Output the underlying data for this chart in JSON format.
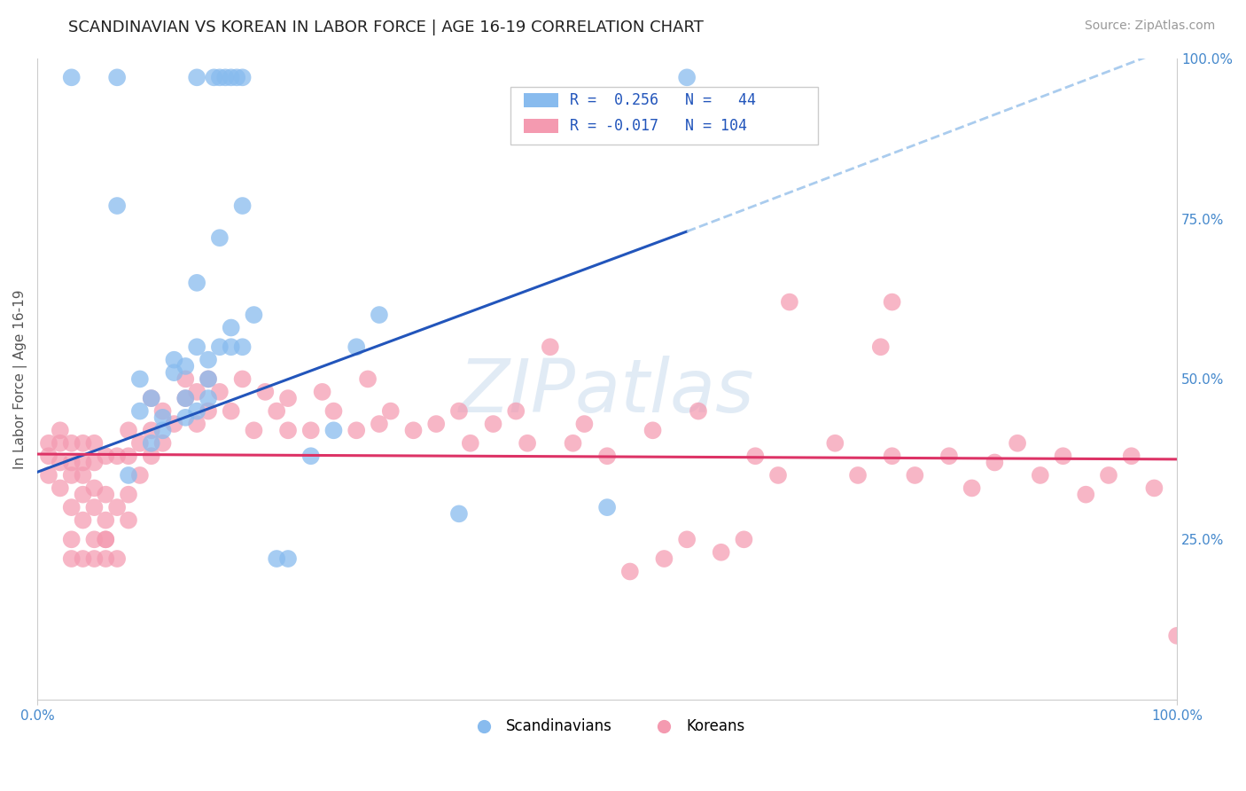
{
  "title": "SCANDINAVIAN VS KOREAN IN LABOR FORCE | AGE 16-19 CORRELATION CHART",
  "source_text": "Source: ZipAtlas.com",
  "ylabel": "In Labor Force | Age 16-19",
  "xlim": [
    0.0,
    1.0
  ],
  "ylim": [
    0.0,
    1.0
  ],
  "ytick_positions": [
    0.25,
    0.5,
    0.75,
    1.0
  ],
  "ytick_labels": [
    "25.0%",
    "50.0%",
    "75.0%",
    "100.0%"
  ],
  "grid_color": "#cccccc",
  "background_color": "#ffffff",
  "watermark": "ZIPatlas",
  "scandinavian_color": "#88bbee",
  "korean_color": "#f49ab0",
  "trend_scand_color": "#2255bb",
  "trend_korean_color": "#dd3366",
  "trend_dashed_color": "#aaccee",
  "scand_x": [
    0.03,
    0.07,
    0.14,
    0.155,
    0.16,
    0.165,
    0.17,
    0.175,
    0.18,
    0.07,
    0.08,
    0.09,
    0.09,
    0.1,
    0.1,
    0.11,
    0.11,
    0.12,
    0.12,
    0.13,
    0.13,
    0.13,
    0.14,
    0.14,
    0.15,
    0.15,
    0.15,
    0.16,
    0.17,
    0.17,
    0.18,
    0.19,
    0.21,
    0.22,
    0.24,
    0.26,
    0.28,
    0.3,
    0.37,
    0.5,
    0.57,
    0.14,
    0.16,
    0.18
  ],
  "scand_y": [
    0.97,
    0.97,
    0.97,
    0.97,
    0.97,
    0.97,
    0.97,
    0.97,
    0.97,
    0.77,
    0.35,
    0.45,
    0.5,
    0.4,
    0.47,
    0.42,
    0.44,
    0.51,
    0.53,
    0.44,
    0.47,
    0.52,
    0.45,
    0.55,
    0.47,
    0.5,
    0.53,
    0.55,
    0.55,
    0.58,
    0.55,
    0.6,
    0.22,
    0.22,
    0.38,
    0.42,
    0.55,
    0.6,
    0.29,
    0.3,
    0.97,
    0.65,
    0.72,
    0.77
  ],
  "korean_x": [
    0.01,
    0.01,
    0.01,
    0.02,
    0.02,
    0.02,
    0.02,
    0.03,
    0.03,
    0.03,
    0.03,
    0.04,
    0.04,
    0.04,
    0.04,
    0.04,
    0.05,
    0.05,
    0.05,
    0.05,
    0.05,
    0.06,
    0.06,
    0.06,
    0.06,
    0.07,
    0.07,
    0.08,
    0.08,
    0.08,
    0.08,
    0.09,
    0.09,
    0.1,
    0.1,
    0.1,
    0.11,
    0.11,
    0.12,
    0.13,
    0.13,
    0.14,
    0.14,
    0.15,
    0.15,
    0.16,
    0.17,
    0.18,
    0.19,
    0.2,
    0.21,
    0.22,
    0.22,
    0.24,
    0.25,
    0.26,
    0.28,
    0.29,
    0.3,
    0.31,
    0.33,
    0.35,
    0.37,
    0.38,
    0.4,
    0.42,
    0.43,
    0.45,
    0.47,
    0.48,
    0.5,
    0.52,
    0.54,
    0.55,
    0.57,
    0.58,
    0.6,
    0.62,
    0.63,
    0.65,
    0.66,
    0.7,
    0.72,
    0.74,
    0.75,
    0.77,
    0.8,
    0.82,
    0.84,
    0.86,
    0.88,
    0.9,
    0.92,
    0.94,
    0.96,
    0.98,
    1.0,
    0.75,
    0.03,
    0.03,
    0.04,
    0.05,
    0.06,
    0.06,
    0.07
  ],
  "korean_y": [
    0.38,
    0.4,
    0.35,
    0.33,
    0.37,
    0.4,
    0.42,
    0.3,
    0.35,
    0.37,
    0.4,
    0.28,
    0.32,
    0.35,
    0.37,
    0.4,
    0.25,
    0.3,
    0.33,
    0.37,
    0.4,
    0.25,
    0.28,
    0.32,
    0.38,
    0.3,
    0.38,
    0.28,
    0.32,
    0.38,
    0.42,
    0.35,
    0.4,
    0.38,
    0.42,
    0.47,
    0.4,
    0.45,
    0.43,
    0.47,
    0.5,
    0.43,
    0.48,
    0.45,
    0.5,
    0.48,
    0.45,
    0.5,
    0.42,
    0.48,
    0.45,
    0.42,
    0.47,
    0.42,
    0.48,
    0.45,
    0.42,
    0.5,
    0.43,
    0.45,
    0.42,
    0.43,
    0.45,
    0.4,
    0.43,
    0.45,
    0.4,
    0.55,
    0.4,
    0.43,
    0.38,
    0.2,
    0.42,
    0.22,
    0.25,
    0.45,
    0.23,
    0.25,
    0.38,
    0.35,
    0.62,
    0.4,
    0.35,
    0.55,
    0.38,
    0.35,
    0.38,
    0.33,
    0.37,
    0.4,
    0.35,
    0.38,
    0.32,
    0.35,
    0.38,
    0.33,
    0.1,
    0.62,
    0.22,
    0.25,
    0.22,
    0.22,
    0.22,
    0.25,
    0.22
  ],
  "trend_scand_x0": 0.0,
  "trend_scand_y0": 0.355,
  "trend_scand_x1": 0.57,
  "trend_scand_y1": 0.73,
  "trend_scand_dash_x0": 0.57,
  "trend_scand_dash_y0": 0.73,
  "trend_scand_dash_x1": 1.0,
  "trend_scand_dash_y1": 1.02,
  "trend_korean_x0": 0.0,
  "trend_korean_y0": 0.383,
  "trend_korean_x1": 1.0,
  "trend_korean_y1": 0.375
}
